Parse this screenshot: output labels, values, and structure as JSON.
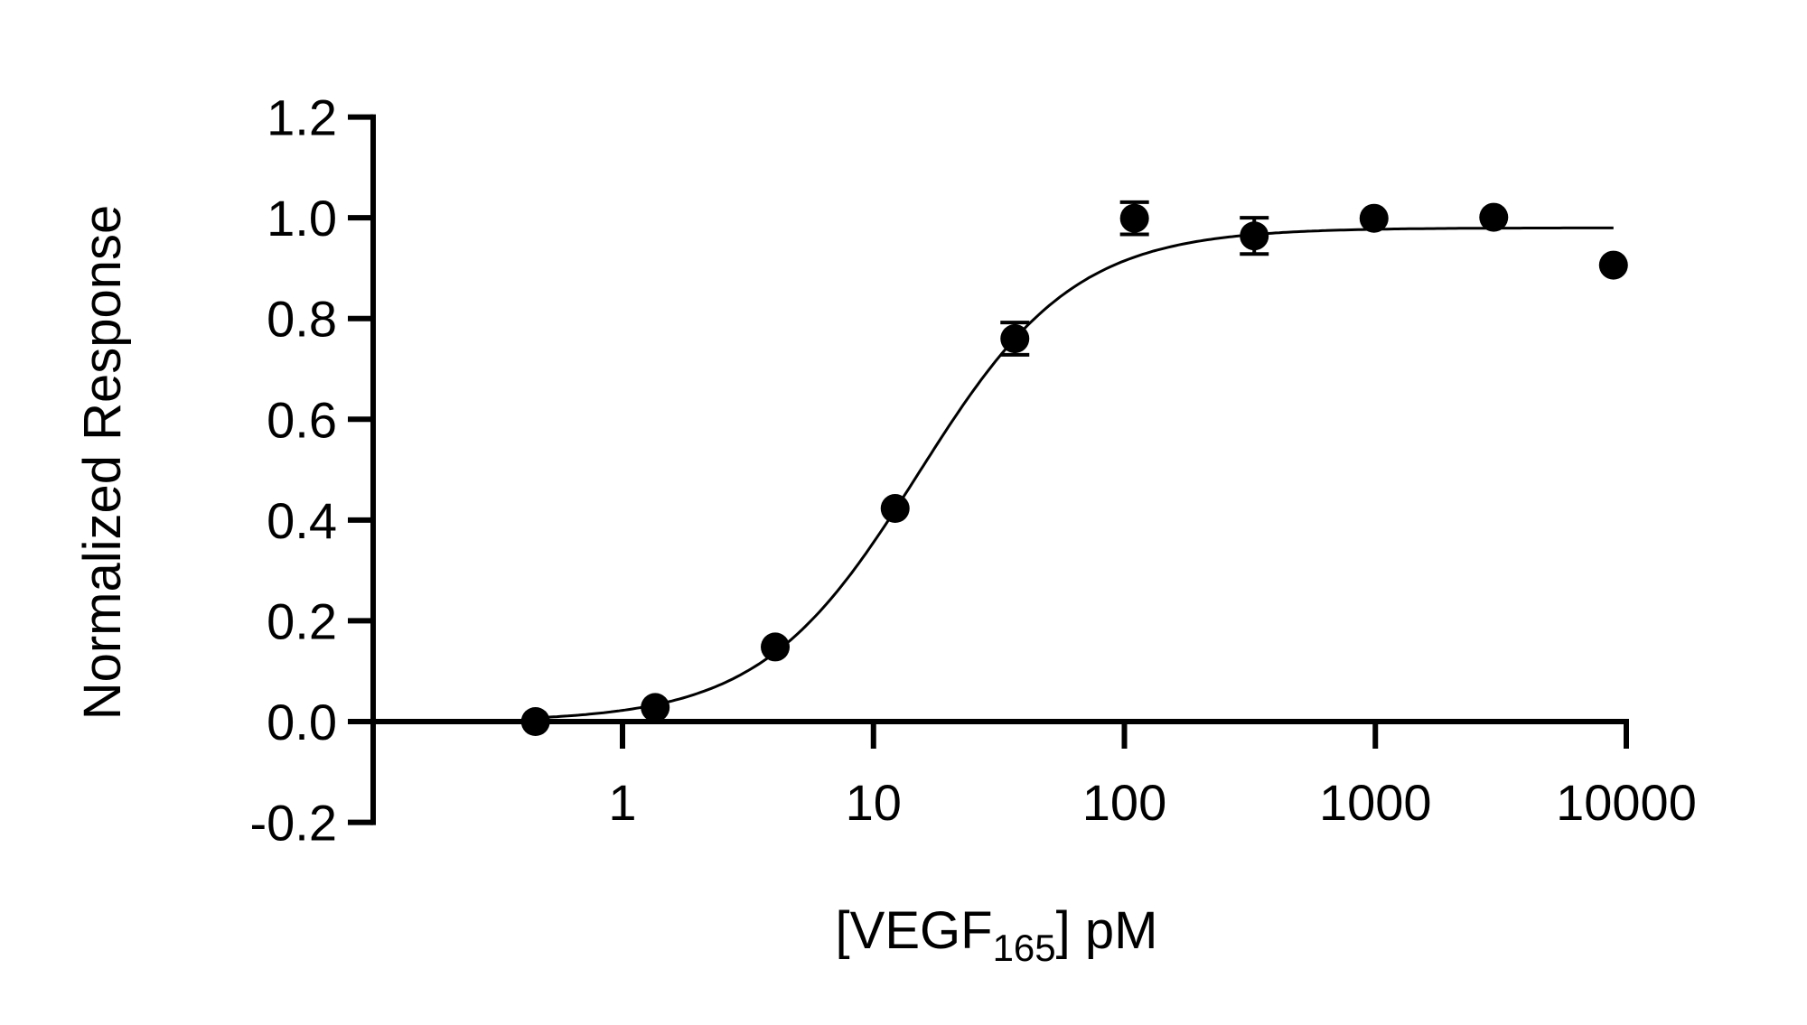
{
  "chart_data": {
    "type": "scatter",
    "title": "",
    "xlabel": "[VEGF165] pM",
    "xlabel_parts": {
      "prefix": "[VEGF",
      "subscript": "165",
      "suffix": "] pM"
    },
    "ylabel": "Normalized Response",
    "x_scale": "log",
    "xlim": [
      0.1,
      10000
    ],
    "ylim": [
      -0.2,
      1.2
    ],
    "x_ticks": [
      1,
      10,
      100,
      1000,
      10000
    ],
    "x_tick_labels": [
      "1",
      "10",
      "100",
      "1000",
      "10000"
    ],
    "y_ticks": [
      -0.2,
      0,
      0.2,
      0.4,
      0.6,
      0.8,
      1.0,
      1.2
    ],
    "y_tick_labels": [
      "-0.2",
      "0.0",
      "0.2",
      "0.4",
      "0.6",
      "0.8",
      "1.0",
      "1.2"
    ],
    "grid": false,
    "series": [
      {
        "x": [
          0.45,
          1.35,
          4.06,
          12.2,
          36.6,
          109.7,
          329.2,
          987.7,
          2963,
          8889
        ],
        "y": [
          0.0,
          0.028,
          0.148,
          0.423,
          0.76,
          0.999,
          0.964,
          0.999,
          1.001,
          0.906
        ],
        "error": [
          0.005,
          0.008,
          0.008,
          0.01,
          0.032,
          0.032,
          0.036,
          0.01,
          0.01,
          0.01
        ],
        "color": "#000000"
      }
    ],
    "fit_curve": {
      "model": "four-parameter logistic",
      "bottom": 0.0,
      "top": 0.98,
      "ec50": 15,
      "hill_slope": 1.39,
      "x_range": [
        0.45,
        8889
      ],
      "color": "#000000"
    }
  }
}
